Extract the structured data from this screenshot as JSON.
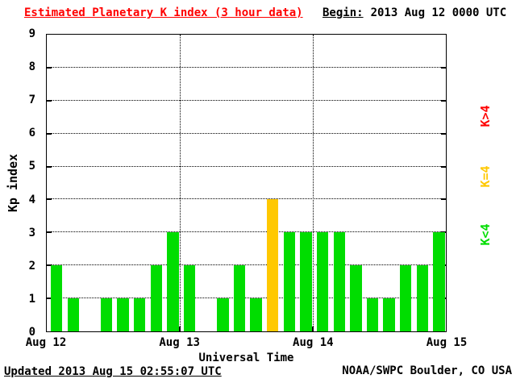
{
  "title": "Estimated Planetary K index (3 hour data)",
  "begin": {
    "label": "Begin:",
    "value": "2013 Aug 12 0000 UTC"
  },
  "footer": {
    "updated": "Updated 2013 Aug 15 02:55:07 UTC",
    "credit": "NOAA/SWPC Boulder, CO USA"
  },
  "colors": {
    "title": "#ff0000",
    "axis_text": "#000000",
    "bar_low": "#00dd00",
    "bar_mid": "#ffc800",
    "bar_high": "#ff0000"
  },
  "chart_data": {
    "type": "bar",
    "title": "Estimated Planetary K index (3 hour data)",
    "xlabel": "Universal Time",
    "ylabel": "Kp index",
    "ylim": [
      0,
      9
    ],
    "yticks": [
      0,
      1,
      2,
      3,
      4,
      5,
      6,
      7,
      8,
      9
    ],
    "x_day_labels": [
      "Aug 12",
      "Aug 13",
      "Aug 14",
      "Aug 15"
    ],
    "hours_per_bar": 3,
    "bars_per_day": 8,
    "begin_utc": "2013 Aug 12 0000 UTC",
    "values": [
      2,
      1,
      0,
      1,
      1,
      1,
      2,
      3,
      2,
      0,
      1,
      2,
      1,
      4,
      3,
      3,
      3,
      3,
      2,
      1,
      1,
      2,
      2,
      3
    ],
    "color_rule": {
      "low": "K<4",
      "mid": "K=4",
      "high": "K>4"
    },
    "colors": {
      "low": "#00dd00",
      "mid": "#ffc800",
      "high": "#ff0000"
    },
    "grid": "dotted horizontal lines at Kp 1-8, dotted vertical lines at day boundaries",
    "legend": [
      {
        "label": "K>4",
        "color": "#ff0000"
      },
      {
        "label": "K=4",
        "color": "#ffc800"
      },
      {
        "label": "K<4",
        "color": "#00dd00"
      }
    ],
    "legend_position": "right side, rotated 90 degrees"
  }
}
